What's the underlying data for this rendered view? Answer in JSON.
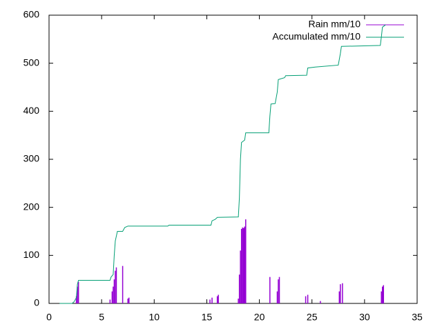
{
  "chart_data": {
    "type": "line",
    "xlim": [
      0,
      35
    ],
    "xticks": [
      0,
      5,
      10,
      15,
      20,
      25,
      30,
      35
    ],
    "ylim": [
      0,
      600
    ],
    "yticks": [
      0,
      100,
      200,
      300,
      400,
      500,
      600
    ],
    "legend": "top-right",
    "series": [
      {
        "name": "Rain mm/10",
        "color": "#9400d3",
        "style": "impulses",
        "x": [
          2.6,
          2.7,
          2.8,
          5.8,
          6.0,
          6.1,
          6.2,
          6.3,
          6.4,
          7.0,
          7.5,
          7.6,
          15.3,
          15.5,
          16.0,
          16.1,
          18.0,
          18.1,
          18.2,
          18.3,
          18.4,
          18.5,
          18.6,
          18.7,
          21.0,
          21.7,
          21.8,
          21.9,
          24.4,
          24.6,
          25.8,
          27.6,
          27.7,
          27.9,
          31.6,
          31.7,
          31.8
        ],
        "values": [
          15,
          35,
          45,
          8,
          25,
          35,
          50,
          68,
          75,
          78,
          10,
          12,
          8,
          12,
          15,
          18,
          10,
          60,
          110,
          155,
          158,
          157,
          160,
          175,
          55,
          25,
          50,
          55,
          15,
          18,
          5,
          25,
          40,
          42,
          25,
          35,
          38
        ]
      },
      {
        "name": "Accumulated mm/10",
        "color": "#009e73",
        "style": "steps",
        "x": [
          1.0,
          2.2,
          2.4,
          2.6,
          2.7,
          2.8,
          5.8,
          5.9,
          6.1,
          6.2,
          6.3,
          6.5,
          7.0,
          7.2,
          7.5,
          11.3,
          11.4,
          15.4,
          15.5,
          15.8,
          16.0,
          18.0,
          18.1,
          18.2,
          18.3,
          18.6,
          18.7,
          20.9,
          21.0,
          21.1,
          21.5,
          21.7,
          21.8,
          22.4,
          22.5,
          24.5,
          24.6,
          25.3,
          27.5,
          27.7,
          27.8,
          31.5,
          31.6,
          31.7,
          32.0
        ],
        "values": [
          0,
          0,
          4,
          12,
          40,
          48,
          48,
          55,
          60,
          100,
          130,
          150,
          150,
          158,
          161,
          161,
          163,
          163,
          172,
          175,
          179,
          180,
          220,
          300,
          335,
          340,
          355,
          355,
          390,
          415,
          416,
          440,
          466,
          470,
          474,
          475,
          490,
          492,
          496,
          520,
          535,
          537,
          555,
          575,
          580
        ]
      }
    ]
  }
}
